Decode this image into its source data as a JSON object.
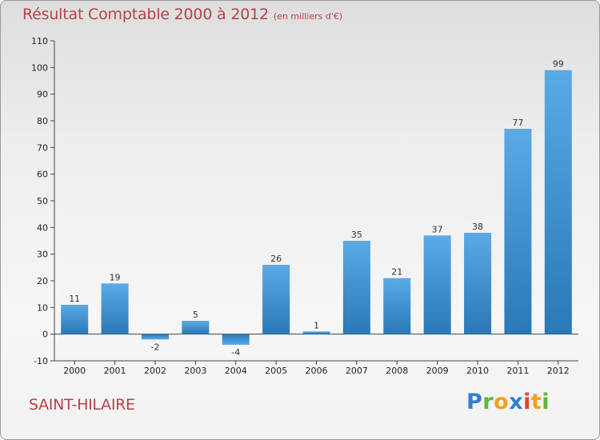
{
  "title": "Résultat Comptable 2000 à 2012",
  "subtitle": "(en milliers d'€)",
  "location": "SAINT-HILAIRE",
  "logo": "Proxiti",
  "colors": {
    "bar_top": "#5aaae6",
    "bar_bottom": "#2a78b6",
    "title": "#b8424a",
    "axis": "#444444"
  },
  "chart_data": {
    "type": "bar",
    "title": "Résultat Comptable 2000 à 2012",
    "subtitle": "(en milliers d'€)",
    "categories": [
      "2000",
      "2001",
      "2002",
      "2003",
      "2004",
      "2005",
      "2006",
      "2007",
      "2008",
      "2009",
      "2010",
      "2011",
      "2012"
    ],
    "values": [
      11,
      19,
      -2,
      5,
      -4,
      26,
      1,
      35,
      21,
      37,
      38,
      77,
      99
    ],
    "ylim": [
      -10,
      110
    ],
    "yticks": [
      -10,
      0,
      10,
      20,
      30,
      40,
      50,
      60,
      70,
      80,
      90,
      100,
      110
    ],
    "grid": false,
    "legend": "none"
  }
}
